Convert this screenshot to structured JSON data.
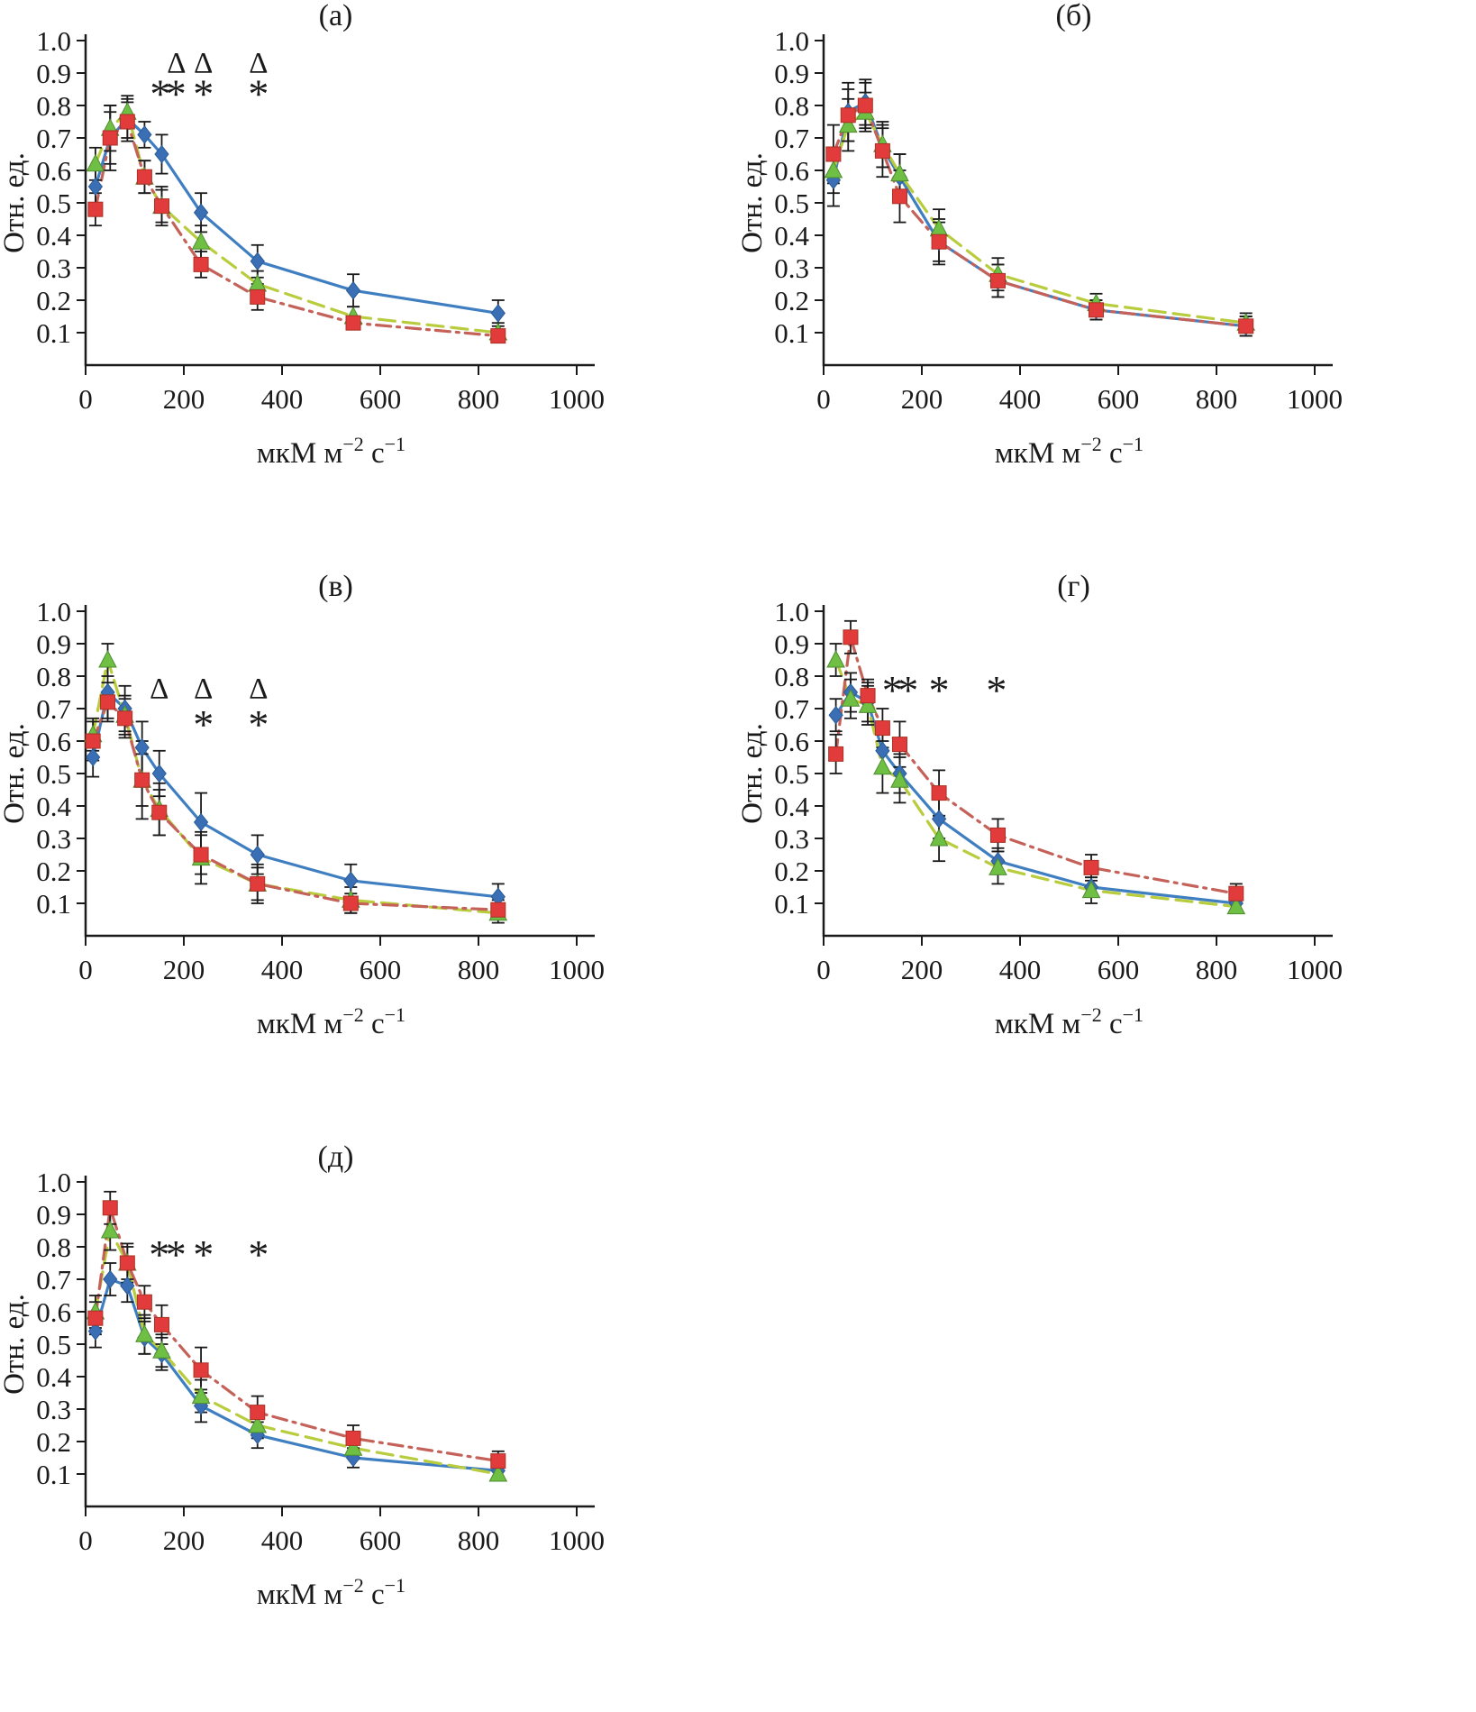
{
  "figure": {
    "ylabel": "Отн. ед.",
    "xlabel_parts": [
      {
        "t": "мкМ м",
        "sup": false
      },
      {
        "t": "−2",
        "sup": true
      },
      {
        "t": " с",
        "sup": false
      },
      {
        "t": "−1",
        "sup": true
      }
    ],
    "x_ticks": [
      0,
      200,
      400,
      600,
      800,
      1000
    ],
    "y_ticks": [
      0.1,
      0.2,
      0.3,
      0.4,
      0.5,
      0.6,
      0.7,
      0.8,
      0.9,
      1.0
    ],
    "xlim": [
      0,
      1000
    ],
    "ylim": [
      0,
      1.0
    ],
    "grid": false,
    "legend": null,
    "axis_color": "#1a1a1a",
    "annotation_symbols": [
      "Δ",
      "*"
    ]
  },
  "chart_data": [
    {
      "type": "line",
      "title": "(а)",
      "x": [
        20,
        50,
        85,
        120,
        155,
        235,
        350,
        545,
        840
      ],
      "series": [
        {
          "name": "blue-diamond-solid",
          "color": "#3f7fc1",
          "marker_color": "#3a6fb5",
          "edge": "#2a5a94",
          "marker": "diamond",
          "line": "solid",
          "values": [
            0.55,
            0.7,
            0.76,
            0.71,
            0.65,
            0.47,
            0.32,
            0.23,
            0.16
          ],
          "errors": [
            0.06,
            0.1,
            0.06,
            0.04,
            0.06,
            0.06,
            0.05,
            0.05,
            0.04
          ]
        },
        {
          "name": "green-triangle-dashed",
          "color": "#b8cc3e",
          "marker_color": "#6fbf44",
          "edge": "#4e8c2f",
          "marker": "triangle",
          "line": "dashed",
          "values": [
            0.62,
            0.73,
            0.78,
            0.58,
            0.49,
            0.38,
            0.25,
            0.15,
            0.1
          ],
          "errors": [
            0.05,
            0.07,
            0.05,
            0.05,
            0.05,
            0.05,
            0.04,
            0.03,
            0.03
          ]
        },
        {
          "name": "red-square-dashdot",
          "color": "#c4625a",
          "marker_color": "#e23b3b",
          "edge": "#a93226",
          "marker": "square",
          "line": "dashdot",
          "values": [
            0.48,
            0.7,
            0.75,
            0.58,
            0.49,
            0.31,
            0.21,
            0.13,
            0.09
          ],
          "errors": [
            0.05,
            0.08,
            0.06,
            0.05,
            0.06,
            0.04,
            0.04,
            0.02,
            0.02
          ]
        }
      ],
      "annotations": [
        {
          "s": "Δ",
          "x": 185,
          "y": 0.935
        },
        {
          "s": "Δ",
          "x": 240,
          "y": 0.935
        },
        {
          "s": "Δ",
          "x": 352,
          "y": 0.935
        },
        {
          "s": "*",
          "x": 152,
          "y": 0.86
        },
        {
          "s": "*",
          "x": 184,
          "y": 0.86
        },
        {
          "s": "*",
          "x": 240,
          "y": 0.86
        },
        {
          "s": "*",
          "x": 352,
          "y": 0.86
        }
      ]
    },
    {
      "type": "line",
      "title": "(б)",
      "x": [
        20,
        50,
        85,
        120,
        155,
        235,
        355,
        555,
        860
      ],
      "series": [
        {
          "name": "blue-diamond-solid",
          "color": "#3f7fc1",
          "marker_color": "#3a6fb5",
          "edge": "#2a5a94",
          "marker": "diamond",
          "line": "solid",
          "values": [
            0.57,
            0.78,
            0.81,
            0.67,
            0.58,
            0.38,
            0.26,
            0.17,
            0.12
          ],
          "errors": [
            0.08,
            0.09,
            0.07,
            0.06,
            0.07,
            0.06,
            0.05,
            0.03,
            0.03
          ]
        },
        {
          "name": "green-triangle-dashed",
          "color": "#b8cc3e",
          "marker_color": "#6fbf44",
          "edge": "#4e8c2f",
          "marker": "triangle",
          "line": "dashed",
          "values": [
            0.6,
            0.74,
            0.78,
            0.68,
            0.59,
            0.42,
            0.28,
            0.19,
            0.13
          ],
          "errors": [
            0.07,
            0.08,
            0.06,
            0.07,
            0.06,
            0.06,
            0.05,
            0.03,
            0.03
          ]
        },
        {
          "name": "red-square-dashdot",
          "color": "#c4625a",
          "marker_color": "#e23b3b",
          "edge": "#a93226",
          "marker": "square",
          "line": "dashdot",
          "values": [
            0.65,
            0.77,
            0.8,
            0.66,
            0.52,
            0.38,
            0.26,
            0.17,
            0.12
          ],
          "errors": [
            0.09,
            0.08,
            0.07,
            0.08,
            0.08,
            0.07,
            0.05,
            0.03,
            0.03
          ]
        }
      ],
      "annotations": []
    },
    {
      "type": "line",
      "title": "(в)",
      "x": [
        15,
        45,
        80,
        115,
        150,
        235,
        350,
        540,
        840
      ],
      "series": [
        {
          "name": "blue-diamond-solid",
          "color": "#3f7fc1",
          "marker_color": "#3a6fb5",
          "edge": "#2a5a94",
          "marker": "diamond",
          "line": "solid",
          "values": [
            0.55,
            0.75,
            0.7,
            0.58,
            0.5,
            0.35,
            0.25,
            0.17,
            0.12
          ],
          "errors": [
            0.06,
            0.08,
            0.07,
            0.08,
            0.07,
            0.09,
            0.06,
            0.05,
            0.04
          ]
        },
        {
          "name": "green-triangle-dashed",
          "color": "#b8cc3e",
          "marker_color": "#6fbf44",
          "edge": "#4e8c2f",
          "marker": "triangle",
          "line": "dashed",
          "values": [
            0.62,
            0.85,
            0.68,
            0.48,
            0.39,
            0.24,
            0.16,
            0.11,
            0.07
          ],
          "errors": [
            0.05,
            0.05,
            0.06,
            0.12,
            0.08,
            0.08,
            0.06,
            0.04,
            0.03
          ]
        },
        {
          "name": "red-square-dashdot",
          "color": "#c4625a",
          "marker_color": "#e23b3b",
          "edge": "#a93226",
          "marker": "square",
          "line": "dashdot",
          "values": [
            0.6,
            0.72,
            0.67,
            0.48,
            0.38,
            0.25,
            0.16,
            0.1,
            0.08
          ],
          "errors": [
            0.06,
            0.06,
            0.06,
            0.08,
            0.07,
            0.06,
            0.05,
            0.03,
            0.03
          ]
        }
      ],
      "annotations": [
        {
          "s": "Δ",
          "x": 150,
          "y": 0.765
        },
        {
          "s": "Δ",
          "x": 240,
          "y": 0.765
        },
        {
          "s": "Δ",
          "x": 352,
          "y": 0.765
        },
        {
          "s": "*",
          "x": 240,
          "y": 0.675
        },
        {
          "s": "*",
          "x": 352,
          "y": 0.675
        }
      ]
    },
    {
      "type": "line",
      "title": "(г)",
      "x": [
        25,
        55,
        90,
        120,
        155,
        235,
        355,
        545,
        840
      ],
      "series": [
        {
          "name": "blue-diamond-solid",
          "color": "#3f7fc1",
          "marker_color": "#3a6fb5",
          "edge": "#2a5a94",
          "marker": "diamond",
          "line": "solid",
          "values": [
            0.68,
            0.75,
            0.72,
            0.57,
            0.5,
            0.36,
            0.23,
            0.15,
            0.1
          ],
          "errors": [
            0.05,
            0.06,
            0.06,
            0.06,
            0.06,
            0.06,
            0.04,
            0.03,
            0.03
          ]
        },
        {
          "name": "green-triangle-dashed",
          "color": "#b8cc3e",
          "marker_color": "#6fbf44",
          "edge": "#4e8c2f",
          "marker": "triangle",
          "line": "dashed",
          "values": [
            0.85,
            0.73,
            0.71,
            0.52,
            0.48,
            0.3,
            0.21,
            0.14,
            0.09
          ],
          "errors": [
            0.05,
            0.06,
            0.06,
            0.08,
            0.07,
            0.07,
            0.05,
            0.04,
            0.02
          ]
        },
        {
          "name": "red-square-dashdot",
          "color": "#c4625a",
          "marker_color": "#e23b3b",
          "edge": "#a93226",
          "marker": "square",
          "line": "dashdot",
          "values": [
            0.56,
            0.92,
            0.74,
            0.64,
            0.59,
            0.44,
            0.31,
            0.21,
            0.13
          ],
          "errors": [
            0.06,
            0.05,
            0.05,
            0.06,
            0.07,
            0.07,
            0.05,
            0.04,
            0.03
          ]
        }
      ],
      "annotations": [
        {
          "s": "*",
          "x": 140,
          "y": 0.78
        },
        {
          "s": "*",
          "x": 172,
          "y": 0.78
        },
        {
          "s": "*",
          "x": 235,
          "y": 0.78
        },
        {
          "s": "*",
          "x": 352,
          "y": 0.78
        }
      ]
    },
    {
      "type": "line",
      "title": "(д)",
      "x": [
        20,
        50,
        85,
        120,
        155,
        235,
        350,
        545,
        840
      ],
      "series": [
        {
          "name": "blue-diamond-solid",
          "color": "#3f7fc1",
          "marker_color": "#3a6fb5",
          "edge": "#2a5a94",
          "marker": "diamond",
          "line": "solid",
          "values": [
            0.54,
            0.7,
            0.68,
            0.52,
            0.47,
            0.31,
            0.22,
            0.15,
            0.11
          ],
          "errors": [
            0.05,
            0.05,
            0.05,
            0.05,
            0.05,
            0.05,
            0.04,
            0.03,
            0.02
          ]
        },
        {
          "name": "green-triangle-dashed",
          "color": "#b8cc3e",
          "marker_color": "#6fbf44",
          "edge": "#4e8c2f",
          "marker": "triangle",
          "line": "dashed",
          "values": [
            0.6,
            0.85,
            0.75,
            0.53,
            0.48,
            0.34,
            0.25,
            0.18,
            0.1
          ],
          "errors": [
            0.05,
            0.06,
            0.05,
            0.06,
            0.05,
            0.05,
            0.04,
            0.03,
            0.02
          ]
        },
        {
          "name": "red-square-dashdot",
          "color": "#c4625a",
          "marker_color": "#e23b3b",
          "edge": "#a93226",
          "marker": "square",
          "line": "dashdot",
          "values": [
            0.58,
            0.92,
            0.75,
            0.63,
            0.56,
            0.42,
            0.29,
            0.21,
            0.14
          ],
          "errors": [
            0.05,
            0.05,
            0.06,
            0.05,
            0.06,
            0.07,
            0.05,
            0.04,
            0.03
          ]
        }
      ],
      "annotations": [
        {
          "s": "*",
          "x": 150,
          "y": 0.8
        },
        {
          "s": "*",
          "x": 184,
          "y": 0.8
        },
        {
          "s": "*",
          "x": 240,
          "y": 0.8
        },
        {
          "s": "*",
          "x": 352,
          "y": 0.8
        }
      ]
    }
  ]
}
